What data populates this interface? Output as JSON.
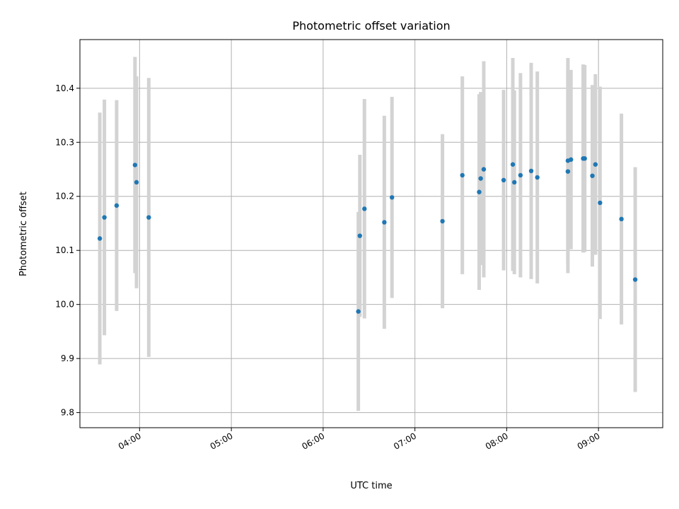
{
  "chart_data": {
    "type": "scatter",
    "title": "Photometric offset variation",
    "xlabel": "UTC time",
    "ylabel": "Photometric offset",
    "xlim": [
      "03:21",
      "09:42"
    ],
    "ylim": [
      9.772,
      10.49
    ],
    "grid": true,
    "legend": "none",
    "x_ticks": [
      "04:00",
      "05:00",
      "06:00",
      "07:00",
      "08:00",
      "09:00"
    ],
    "y_ticks": [
      "9.8",
      "9.9",
      "10.0",
      "10.1",
      "10.2",
      "10.3",
      "10.4"
    ],
    "colors": {
      "point": "#1f77b4",
      "errorbar": "#d3d3d3",
      "grid": "#b0b0b0"
    },
    "series": [
      {
        "points": [
          {
            "x": "03:34",
            "y": 10.122,
            "err": 0.233
          },
          {
            "x": "03:37",
            "y": 10.161,
            "err": 0.218
          },
          {
            "x": "03:45",
            "y": 10.183,
            "err": 0.195
          },
          {
            "x": "03:57",
            "y": 10.258,
            "err": 0.2
          },
          {
            "x": "03:58",
            "y": 10.226,
            "err": 0.196
          },
          {
            "x": "04:06",
            "y": 10.161,
            "err": 0.258
          },
          {
            "x": "06:23",
            "y": 9.987,
            "err": 0.184
          },
          {
            "x": "06:24",
            "y": 10.127,
            "err": 0.15
          },
          {
            "x": "06:27",
            "y": 10.177,
            "err": 0.203
          },
          {
            "x": "06:40",
            "y": 10.152,
            "err": 0.197
          },
          {
            "x": "06:45",
            "y": 10.198,
            "err": 0.186
          },
          {
            "x": "07:18",
            "y": 10.154,
            "err": 0.161
          },
          {
            "x": "07:31",
            "y": 10.239,
            "err": 0.183
          },
          {
            "x": "07:42",
            "y": 10.208,
            "err": 0.181
          },
          {
            "x": "07:43",
            "y": 10.233,
            "err": 0.16
          },
          {
            "x": "07:45",
            "y": 10.25,
            "err": 0.2
          },
          {
            "x": "07:58",
            "y": 10.23,
            "err": 0.167
          },
          {
            "x": "08:04",
            "y": 10.259,
            "err": 0.197
          },
          {
            "x": "08:05",
            "y": 10.226,
            "err": 0.17
          },
          {
            "x": "08:09",
            "y": 10.239,
            "err": 0.189
          },
          {
            "x": "08:16",
            "y": 10.247,
            "err": 0.2
          },
          {
            "x": "08:20",
            "y": 10.235,
            "err": 0.196
          },
          {
            "x": "08:40",
            "y": 10.266,
            "err": 0.19
          },
          {
            "x": "08:40",
            "y": 10.246,
            "err": 0.188
          },
          {
            "x": "08:42",
            "y": 10.268,
            "err": 0.166
          },
          {
            "x": "08:50",
            "y": 10.27,
            "err": 0.174
          },
          {
            "x": "08:51",
            "y": 10.27,
            "err": 0.173
          },
          {
            "x": "08:56",
            "y": 10.238,
            "err": 0.168
          },
          {
            "x": "08:58",
            "y": 10.259,
            "err": 0.167
          },
          {
            "x": "09:01",
            "y": 10.188,
            "err": 0.215
          },
          {
            "x": "09:15",
            "y": 10.158,
            "err": 0.195
          },
          {
            "x": "09:24",
            "y": 10.046,
            "err": 0.208
          }
        ]
      }
    ]
  }
}
